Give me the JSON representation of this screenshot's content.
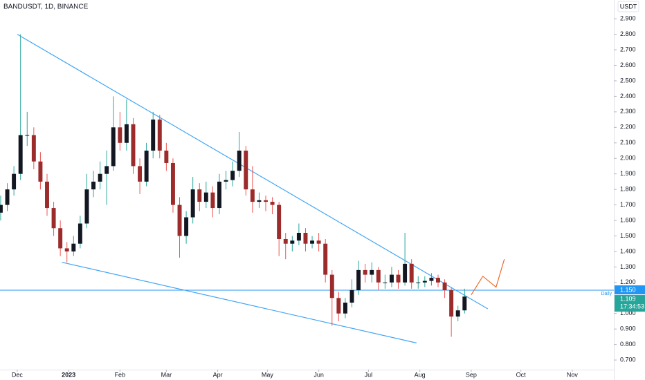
{
  "chart_data": {
    "type": "candlestick",
    "title": "BANDUSDT, 1D, BINANCE",
    "currency": "USDT",
    "xlim": [
      -10.4,
      360.1
    ],
    "ylim": [
      0.638,
      3.021
    ],
    "xticks": [
      {
        "value": 0,
        "label": "Dec"
      },
      {
        "value": 31,
        "label": "2023"
      },
      {
        "value": 62,
        "label": "Feb"
      },
      {
        "value": 90,
        "label": "Mar"
      },
      {
        "value": 121,
        "label": "Apr"
      },
      {
        "value": 151,
        "label": "May"
      },
      {
        "value": 182,
        "label": "Jun"
      },
      {
        "value": 212,
        "label": "Jul"
      },
      {
        "value": 243,
        "label": "Aug"
      },
      {
        "value": 274,
        "label": "Sep"
      },
      {
        "value": 304,
        "label": "Oct"
      },
      {
        "value": 335,
        "label": "Nov"
      }
    ],
    "yticks": [
      {
        "value": 0.7,
        "label": "0.700"
      },
      {
        "value": 0.8,
        "label": "0.800"
      },
      {
        "value": 0.9,
        "label": "0.900"
      },
      {
        "value": 1.0,
        "label": "1.000"
      },
      {
        "value": 1.2,
        "label": "1.200"
      },
      {
        "value": 1.3,
        "label": "1.300"
      },
      {
        "value": 1.4,
        "label": "1.400"
      },
      {
        "value": 1.5,
        "label": "1.500"
      },
      {
        "value": 1.6,
        "label": "1.600"
      },
      {
        "value": 1.7,
        "label": "1.700"
      },
      {
        "value": 1.8,
        "label": "1.800"
      },
      {
        "value": 1.9,
        "label": "1.900"
      },
      {
        "value": 2.0,
        "label": "2.000"
      },
      {
        "value": 2.1,
        "label": "2.100"
      },
      {
        "value": 2.2,
        "label": "2.200"
      },
      {
        "value": 2.3,
        "label": "2.300"
      },
      {
        "value": 2.4,
        "label": "2.400"
      },
      {
        "value": 2.5,
        "label": "2.500"
      },
      {
        "value": 2.6,
        "label": "2.600"
      },
      {
        "value": 2.7,
        "label": "2.700"
      },
      {
        "value": 2.8,
        "label": "2.800"
      },
      {
        "value": 2.9,
        "label": "2.900"
      }
    ],
    "up_color": "#131722",
    "down_color": "#9c2b2b",
    "up_wick": "#26a69a",
    "down_wick": "#ef5350",
    "x": [
      -10,
      -6,
      -2,
      2,
      6,
      10,
      14,
      18,
      22,
      26,
      30,
      34,
      38,
      42,
      46,
      50,
      54,
      58,
      62,
      66,
      70,
      74,
      78,
      82,
      86,
      90,
      94,
      98,
      102,
      106,
      110,
      114,
      118,
      122,
      126,
      130,
      134,
      138,
      142,
      146,
      150,
      154,
      158,
      162,
      166,
      170,
      174,
      178,
      182,
      186,
      190,
      194,
      198,
      202,
      206,
      210,
      214,
      218,
      222,
      226,
      230,
      234,
      238,
      242,
      246,
      250,
      254,
      258,
      262,
      266,
      270
    ],
    "ohlc": [
      [
        1.65,
        1.76,
        1.6,
        1.7
      ],
      [
        1.7,
        1.84,
        1.66,
        1.8
      ],
      [
        1.8,
        1.95,
        1.76,
        1.9
      ],
      [
        1.9,
        2.8,
        1.86,
        2.15
      ],
      [
        2.15,
        2.3,
        2.08,
        2.15
      ],
      [
        2.15,
        2.2,
        1.93,
        1.98
      ],
      [
        1.98,
        2.04,
        1.8,
        1.85
      ],
      [
        1.85,
        1.9,
        1.63,
        1.68
      ],
      [
        1.68,
        1.72,
        1.5,
        1.55
      ],
      [
        1.55,
        1.6,
        1.37,
        1.42
      ],
      [
        1.42,
        1.46,
        1.33,
        1.4
      ],
      [
        1.4,
        1.5,
        1.37,
        1.45
      ],
      [
        1.45,
        1.63,
        1.42,
        1.58
      ],
      [
        1.58,
        1.9,
        1.55,
        1.8
      ],
      [
        1.8,
        1.92,
        1.75,
        1.85
      ],
      [
        1.85,
        1.98,
        1.8,
        1.9
      ],
      [
        1.9,
        2.05,
        1.7,
        1.95
      ],
      [
        1.95,
        2.4,
        1.92,
        2.2
      ],
      [
        2.2,
        2.3,
        2.05,
        2.1
      ],
      [
        2.1,
        2.38,
        2.05,
        2.22
      ],
      [
        2.22,
        2.26,
        1.9,
        1.95
      ],
      [
        1.95,
        2.0,
        1.77,
        1.85
      ],
      [
        1.85,
        2.1,
        1.82,
        2.05
      ],
      [
        2.05,
        2.3,
        2.0,
        2.25
      ],
      [
        2.25,
        2.28,
        2.0,
        2.05
      ],
      [
        2.05,
        2.1,
        1.92,
        1.97
      ],
      [
        1.97,
        2.0,
        1.65,
        1.7
      ],
      [
        1.7,
        1.75,
        1.36,
        1.5
      ],
      [
        1.5,
        1.66,
        1.45,
        1.62
      ],
      [
        1.62,
        1.88,
        1.58,
        1.8
      ],
      [
        1.8,
        1.84,
        1.66,
        1.72
      ],
      [
        1.72,
        1.85,
        1.68,
        1.78
      ],
      [
        1.78,
        1.82,
        1.62,
        1.68
      ],
      [
        1.68,
        1.9,
        1.64,
        1.85
      ],
      [
        1.85,
        1.92,
        1.8,
        1.86
      ],
      [
        1.86,
        1.98,
        1.82,
        1.92
      ],
      [
        1.92,
        2.17,
        1.88,
        2.05
      ],
      [
        2.05,
        2.08,
        1.76,
        1.8
      ],
      [
        1.8,
        1.95,
        1.65,
        1.72
      ],
      [
        1.72,
        1.78,
        1.68,
        1.73
      ],
      [
        1.73,
        1.76,
        1.66,
        1.72
      ],
      [
        1.72,
        1.75,
        1.64,
        1.7
      ],
      [
        1.7,
        1.72,
        1.37,
        1.48
      ],
      [
        1.48,
        1.52,
        1.35,
        1.45
      ],
      [
        1.45,
        1.5,
        1.4,
        1.47
      ],
      [
        1.47,
        1.58,
        1.44,
        1.52
      ],
      [
        1.52,
        1.55,
        1.4,
        1.45
      ],
      [
        1.45,
        1.5,
        1.42,
        1.47
      ],
      [
        1.47,
        1.52,
        1.4,
        1.45
      ],
      [
        1.45,
        1.48,
        1.2,
        1.25
      ],
      [
        1.25,
        1.28,
        0.92,
        1.1
      ],
      [
        1.1,
        1.14,
        0.95,
        1.0
      ],
      [
        1.0,
        1.1,
        0.97,
        1.07
      ],
      [
        1.07,
        1.22,
        1.04,
        1.15
      ],
      [
        1.15,
        1.34,
        1.12,
        1.28
      ],
      [
        1.28,
        1.32,
        1.2,
        1.25
      ],
      [
        1.25,
        1.33,
        1.2,
        1.28
      ],
      [
        1.28,
        1.3,
        1.15,
        1.2
      ],
      [
        1.2,
        1.25,
        1.16,
        1.2
      ],
      [
        1.2,
        1.3,
        1.17,
        1.25
      ],
      [
        1.25,
        1.28,
        1.16,
        1.2
      ],
      [
        1.2,
        1.52,
        1.18,
        1.32
      ],
      [
        1.32,
        1.35,
        1.16,
        1.2
      ],
      [
        1.2,
        1.24,
        1.16,
        1.2
      ],
      [
        1.2,
        1.24,
        1.17,
        1.21
      ],
      [
        1.21,
        1.26,
        1.18,
        1.23
      ],
      [
        1.23,
        1.25,
        1.17,
        1.2
      ],
      [
        1.2,
        1.22,
        1.1,
        1.15
      ],
      [
        1.15,
        1.17,
        0.85,
        0.98
      ],
      [
        0.98,
        1.05,
        0.95,
        1.02
      ],
      [
        1.02,
        1.16,
        1.0,
        1.109
      ]
    ],
    "lines": [
      {
        "color": "#42a5f5",
        "points": [
          [
            0,
            2.8
          ],
          [
            284,
            1.03
          ]
        ]
      },
      {
        "color": "#42a5f5",
        "points": [
          [
            27,
            1.33
          ],
          [
            241,
            0.81
          ]
        ]
      },
      {
        "color": "#f0692b",
        "points": [
          [
            274,
            1.12
          ],
          [
            281,
            1.24
          ],
          [
            289,
            1.17
          ],
          [
            294,
            1.35
          ]
        ]
      }
    ],
    "horizontal_line": {
      "value": 1.15,
      "label": "1.150",
      "name": "Daily",
      "color": "#2196f3"
    },
    "last_price": {
      "value": 1.109,
      "label": "1.109",
      "countdown": "17:34:53",
      "color": "#26a69a"
    }
  }
}
